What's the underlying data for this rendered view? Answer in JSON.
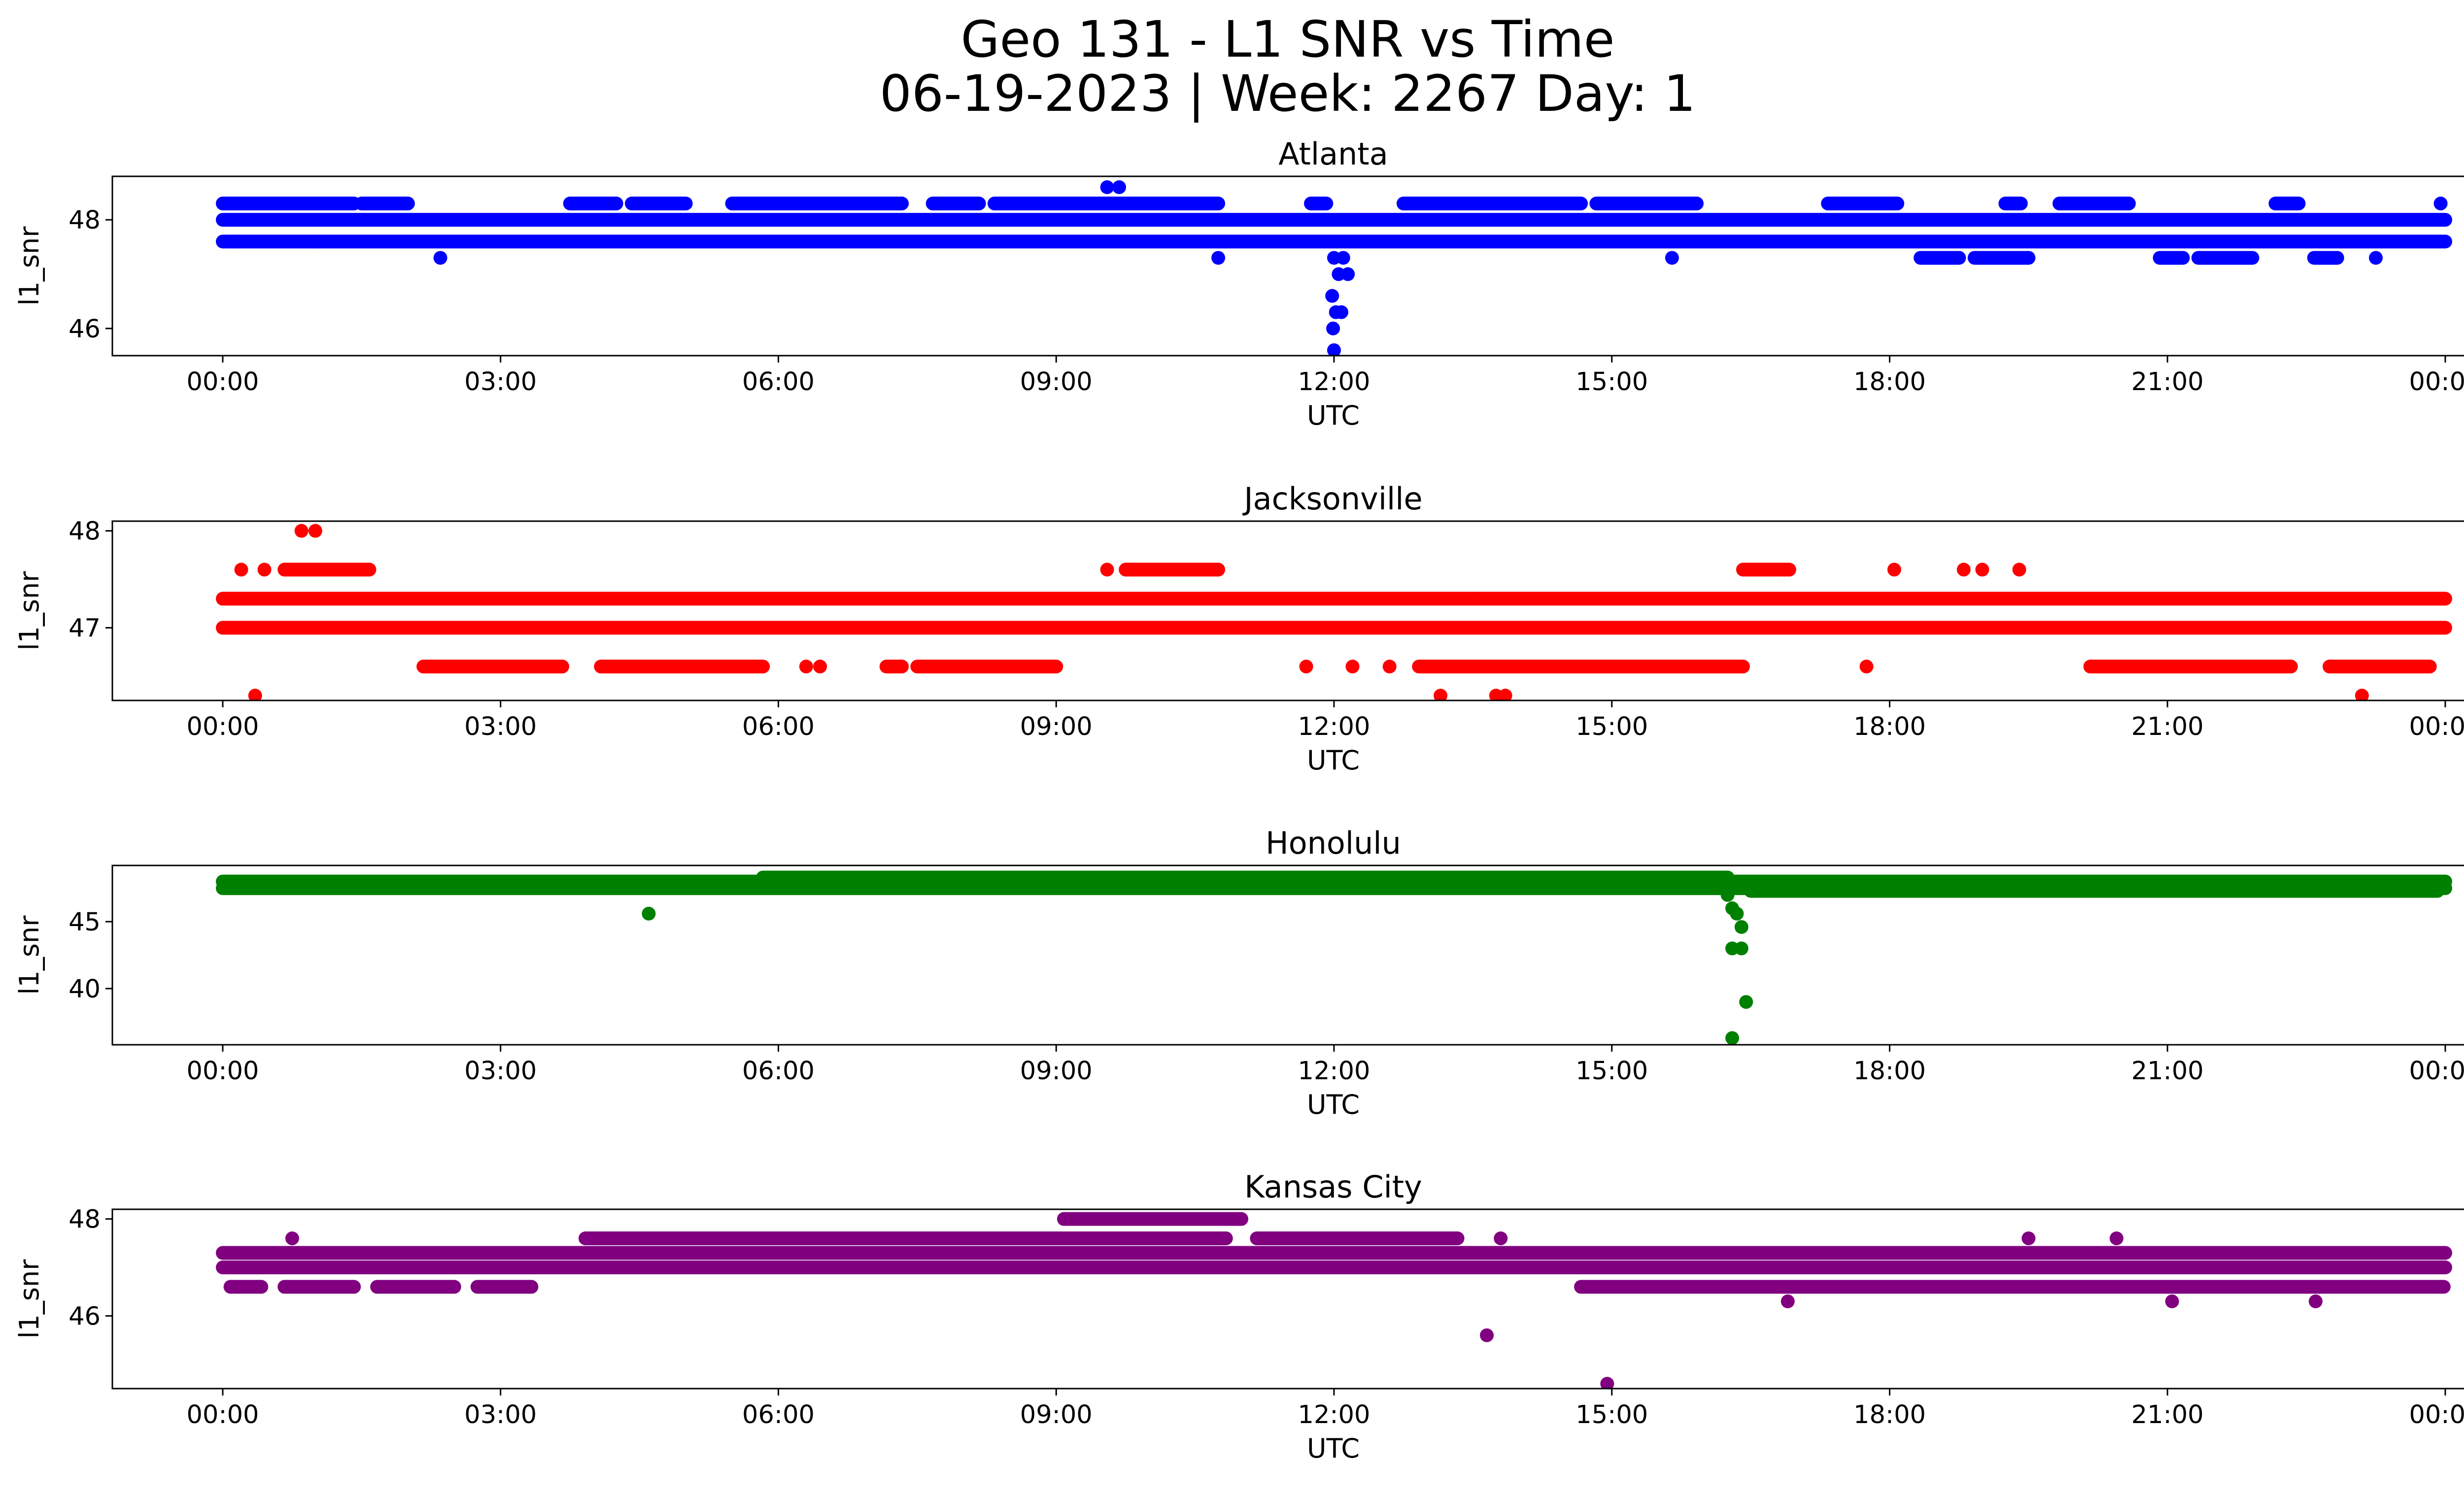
{
  "figure": {
    "title_line1": "Geo 131 - L1 SNR vs Time",
    "title_line2": "06-19-2023 | Week: 2267 Day: 1"
  },
  "chart_data": [
    {
      "type": "scatter",
      "title": "Atlanta",
      "xlabel": "UTC",
      "ylabel": "l1_snr",
      "color": "#0000ff",
      "x_range": [
        "2023-06-19 00:00",
        "2023-06-20 00:00"
      ],
      "x_ticks": [
        "00:00",
        "03:00",
        "06:00",
        "09:00",
        "12:00",
        "15:00",
        "18:00",
        "21:00",
        "00:00"
      ],
      "ylim": [
        45.5,
        48.8
      ],
      "y_ticks": [
        46,
        48
      ],
      "continuous_levels": [
        48.0,
        47.6
      ],
      "segments": [
        {
          "level": 48.3,
          "from": "00:00",
          "to": "01:25"
        },
        {
          "level": 48.3,
          "from": "01:30",
          "to": "02:00"
        },
        {
          "level": 48.3,
          "from": "03:45",
          "to": "04:15"
        },
        {
          "level": 48.3,
          "from": "04:25",
          "to": "05:00"
        },
        {
          "level": 48.3,
          "from": "05:30",
          "to": "07:20"
        },
        {
          "level": 48.3,
          "from": "07:40",
          "to": "08:10"
        },
        {
          "level": 48.3,
          "from": "08:20",
          "to": "10:45"
        },
        {
          "level": 48.3,
          "from": "11:45",
          "to": "11:55"
        },
        {
          "level": 48.3,
          "from": "12:45",
          "to": "14:40"
        },
        {
          "level": 48.3,
          "from": "14:50",
          "to": "15:55"
        },
        {
          "level": 48.3,
          "from": "17:20",
          "to": "18:05"
        },
        {
          "level": 48.3,
          "from": "19:15",
          "to": "19:25"
        },
        {
          "level": 48.3,
          "from": "19:50",
          "to": "20:35"
        },
        {
          "level": 48.3,
          "from": "22:10",
          "to": "22:25"
        },
        {
          "level": 47.3,
          "from": "18:20",
          "to": "18:45"
        },
        {
          "level": 47.3,
          "from": "18:55",
          "to": "19:30"
        },
        {
          "level": 47.3,
          "from": "20:55",
          "to": "21:10"
        },
        {
          "level": 47.3,
          "from": "21:20",
          "to": "21:55"
        },
        {
          "level": 47.3,
          "from": "22:35",
          "to": "22:50"
        }
      ],
      "points": [
        [
          0.17,
          47.6
        ],
        [
          1.0,
          47.6
        ],
        [
          2.35,
          47.3
        ],
        [
          9.55,
          48.6
        ],
        [
          9.68,
          48.6
        ],
        [
          12.0,
          47.3
        ],
        [
          12.05,
          47.0
        ],
        [
          12.1,
          47.3
        ],
        [
          12.15,
          47.0
        ],
        [
          11.98,
          46.6
        ],
        [
          12.02,
          46.3
        ],
        [
          12.08,
          46.3
        ],
        [
          11.99,
          46.0
        ],
        [
          12.0,
          45.6
        ],
        [
          10.75,
          47.3
        ],
        [
          15.65,
          47.3
        ],
        [
          23.25,
          47.3
        ],
        [
          23.95,
          48.3
        ]
      ]
    },
    {
      "type": "scatter",
      "title": "Jacksonville",
      "xlabel": "UTC",
      "ylabel": "l1_snr",
      "color": "#ff0000",
      "x_range": [
        "2023-06-19 00:00",
        "2023-06-20 00:00"
      ],
      "x_ticks": [
        "00:00",
        "03:00",
        "06:00",
        "09:00",
        "12:00",
        "15:00",
        "18:00",
        "21:00",
        "00:00"
      ],
      "ylim": [
        46.25,
        48.1
      ],
      "y_ticks": [
        47,
        48
      ],
      "continuous_levels": [
        47.3,
        47.0
      ],
      "segments": [
        {
          "level": 47.6,
          "from": "00:40",
          "to": "01:35"
        },
        {
          "level": 47.6,
          "from": "09:45",
          "to": "10:45"
        },
        {
          "level": 47.6,
          "from": "16:25",
          "to": "16:55"
        },
        {
          "level": 46.6,
          "from": "02:10",
          "to": "03:40"
        },
        {
          "level": 46.6,
          "from": "04:05",
          "to": "05:50"
        },
        {
          "level": 46.6,
          "from": "07:10",
          "to": "07:20"
        },
        {
          "level": 46.6,
          "from": "07:30",
          "to": "09:00"
        },
        {
          "level": 46.6,
          "from": "12:55",
          "to": "16:25"
        },
        {
          "level": 46.6,
          "from": "20:10",
          "to": "22:20"
        },
        {
          "level": 46.6,
          "from": "22:45",
          "to": "23:50"
        }
      ],
      "points": [
        [
          0.2,
          47.6
        ],
        [
          0.45,
          47.6
        ],
        [
          0.85,
          48.0
        ],
        [
          1.0,
          48.0
        ],
        [
          0.35,
          46.3
        ],
        [
          13.15,
          46.3
        ],
        [
          13.75,
          46.3
        ],
        [
          13.85,
          46.3
        ],
        [
          23.1,
          46.3
        ],
        [
          9.55,
          47.6
        ],
        [
          17.75,
          46.6
        ],
        [
          18.05,
          47.6
        ],
        [
          18.8,
          47.6
        ],
        [
          19.0,
          47.6
        ],
        [
          19.4,
          47.6
        ],
        [
          6.3,
          46.6
        ],
        [
          6.45,
          46.6
        ],
        [
          11.7,
          46.6
        ],
        [
          12.2,
          46.6
        ],
        [
          12.6,
          46.6
        ],
        [
          13.5,
          47.3
        ],
        [
          14.1,
          47.3
        ]
      ]
    },
    {
      "type": "scatter",
      "title": "Honolulu",
      "xlabel": "UTC",
      "ylabel": "l1_snr",
      "color": "#008000",
      "x_range": [
        "2023-06-19 00:00",
        "2023-06-20 00:00"
      ],
      "x_ticks": [
        "00:00",
        "03:00",
        "06:00",
        "09:00",
        "12:00",
        "15:00",
        "18:00",
        "21:00",
        "00:00"
      ],
      "ylim": [
        35.8,
        49.2
      ],
      "y_ticks": [
        40,
        45
      ],
      "continuous_levels": [
        47.5,
        48.0
      ],
      "segments": [
        {
          "level": 48.3,
          "from": "05:50",
          "to": "16:15"
        },
        {
          "level": 47.3,
          "from": "16:30",
          "to": "23:55"
        }
      ],
      "points": [
        [
          4.6,
          45.6
        ],
        [
          16.25,
          47.0
        ],
        [
          16.3,
          46.0
        ],
        [
          16.35,
          45.6
        ],
        [
          16.4,
          44.6
        ],
        [
          16.3,
          43.0
        ],
        [
          16.4,
          43.0
        ],
        [
          16.45,
          39.0
        ],
        [
          16.3,
          36.3
        ]
      ]
    },
    {
      "type": "scatter",
      "title": "Kansas City",
      "xlabel": "UTC",
      "ylabel": "l1_snr",
      "color": "#800080",
      "x_range": [
        "2023-06-19 00:00",
        "2023-06-20 00:00"
      ],
      "x_ticks": [
        "00:00",
        "03:00",
        "06:00",
        "09:00",
        "12:00",
        "15:00",
        "18:00",
        "21:00",
        "00:00"
      ],
      "ylim": [
        44.5,
        48.2
      ],
      "y_ticks": [
        46,
        48
      ],
      "continuous_levels": [
        47.3,
        47.0
      ],
      "segments": [
        {
          "level": 46.6,
          "from": "00:05",
          "to": "00:25"
        },
        {
          "level": 46.6,
          "from": "00:40",
          "to": "01:25"
        },
        {
          "level": 46.6,
          "from": "01:40",
          "to": "02:30"
        },
        {
          "level": 46.6,
          "from": "02:45",
          "to": "03:20"
        },
        {
          "level": 47.6,
          "from": "03:55",
          "to": "10:50"
        },
        {
          "level": 47.6,
          "from": "11:10",
          "to": "13:20"
        },
        {
          "level": 48.0,
          "from": "09:05",
          "to": "11:00"
        },
        {
          "level": 46.6,
          "from": "14:40",
          "to": "23:59"
        },
        {
          "level": 47.3,
          "from": "13:00",
          "to": "23:40"
        }
      ],
      "points": [
        [
          0.75,
          47.6
        ],
        [
          13.65,
          45.6
        ],
        [
          14.95,
          44.6
        ],
        [
          13.8,
          47.6
        ],
        [
          16.9,
          46.3
        ],
        [
          16.95,
          47.3
        ],
        [
          19.5,
          47.6
        ],
        [
          20.45,
          47.6
        ],
        [
          21.05,
          46.3
        ],
        [
          22.6,
          46.3
        ],
        [
          23.3,
          47.3
        ],
        [
          23.55,
          47.3
        ]
      ]
    }
  ]
}
